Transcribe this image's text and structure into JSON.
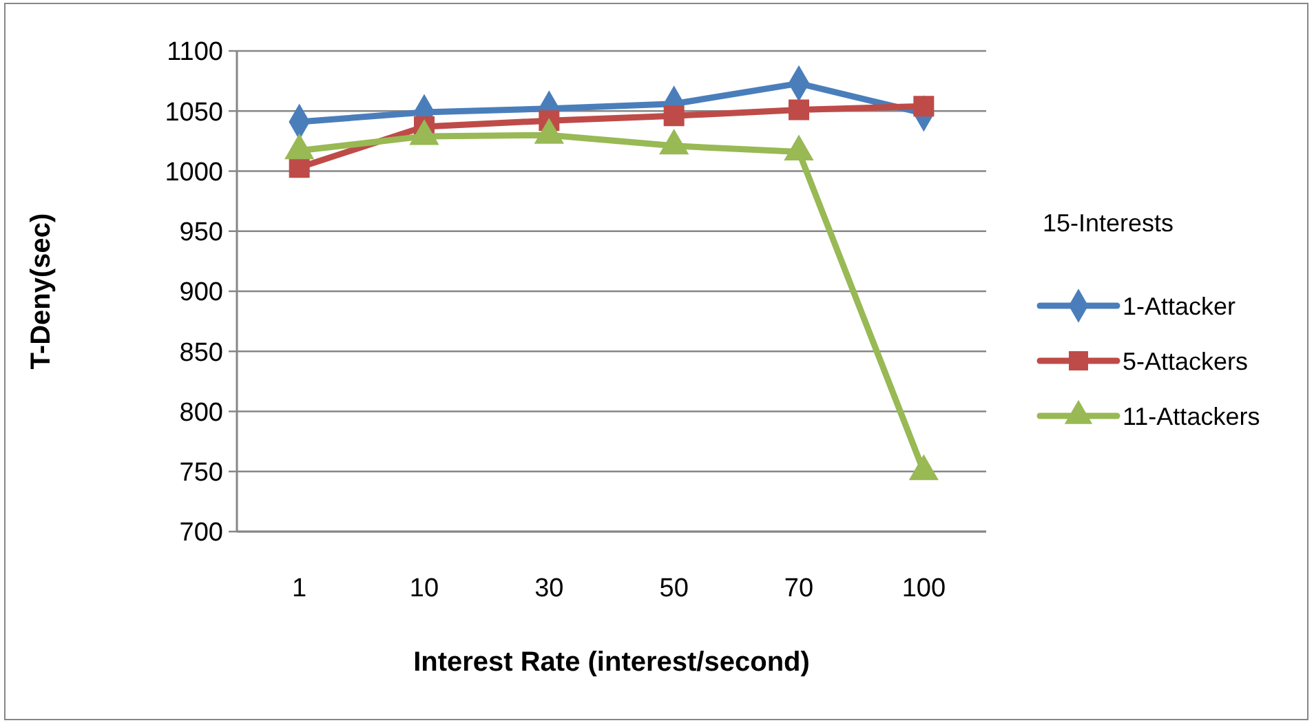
{
  "chart_data": {
    "type": "line",
    "xlabel": "Interest Rate (interest/second)",
    "ylabel": "T-Deny(sec)",
    "legend_title": "15-Interests",
    "categories": [
      "1",
      "10",
      "30",
      "50",
      "70",
      "100"
    ],
    "series": [
      {
        "name": "1-Attacker",
        "color": "#4a7ebb",
        "marker": "diamond",
        "values": [
          1041,
          1049,
          1052,
          1056,
          1073,
          1048
        ]
      },
      {
        "name": "5-Attackers",
        "color": "#be4b48",
        "marker": "square",
        "values": [
          1003,
          1037,
          1042,
          1046,
          1051,
          1054
        ]
      },
      {
        "name": "11-Attackers",
        "color": "#98b954",
        "marker": "triangle",
        "values": [
          1017,
          1029,
          1030,
          1021,
          1016,
          750
        ]
      }
    ],
    "ylim": [
      700,
      1100
    ],
    "yticks": [
      700,
      750,
      800,
      850,
      900,
      950,
      1000,
      1050,
      1100
    ],
    "grid": "y",
    "legend": "right"
  }
}
